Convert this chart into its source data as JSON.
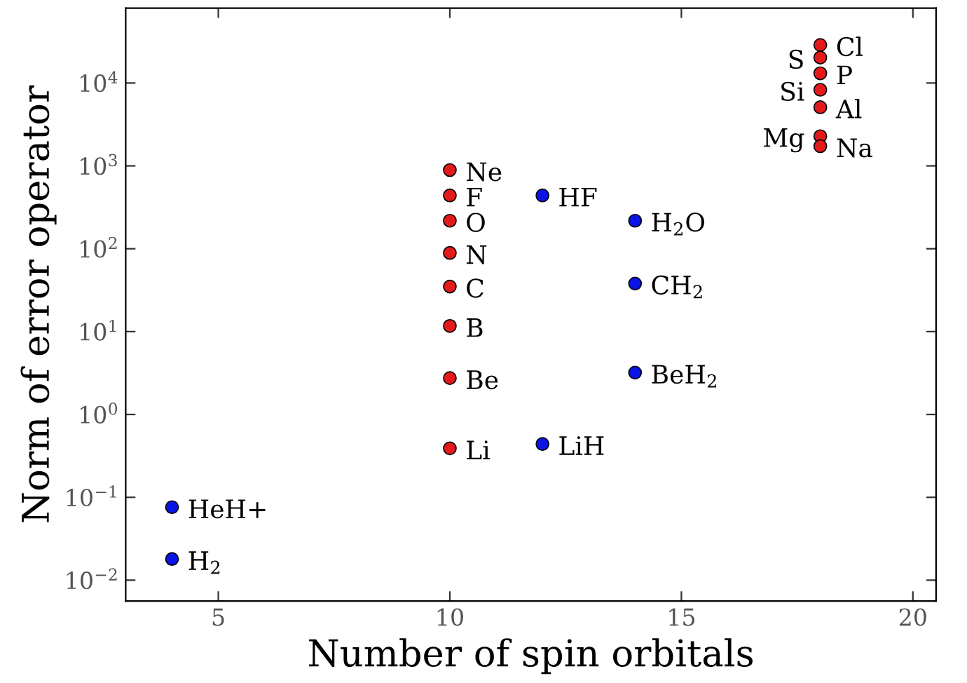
{
  "chart_data": {
    "type": "scatter",
    "xlabel": "Number of spin orbitals",
    "ylabel": "Norm of error operator",
    "log": "y",
    "grid": false,
    "legend": false,
    "marker": "circle",
    "xlim": [
      3,
      20.5
    ],
    "xticks": [
      5,
      10,
      15,
      20
    ],
    "ylim": [
      0.0056,
      80000
    ],
    "yticks": [
      {
        "value": 0.01,
        "label": "10$^{−2}$"
      },
      {
        "value": 0.1,
        "label": "10$^{−1}$"
      },
      {
        "value": 1,
        "label": "10$^{0}$"
      },
      {
        "value": 10,
        "label": "10$^{1}$"
      },
      {
        "value": 100,
        "label": "10$^{2}$"
      },
      {
        "value": 1000,
        "label": "10$^{3}$"
      },
      {
        "value": 10000,
        "label": "10$^{4}$"
      }
    ],
    "series": [
      {
        "color": "#e31a1c",
        "x": [
          10,
          10,
          10,
          10,
          10,
          10,
          10,
          10,
          18,
          18,
          18,
          18,
          18,
          18,
          18
        ],
        "values": [
          890,
          440,
          218,
          89,
          35,
          11.7,
          2.75,
          0.39,
          28800,
          20300,
          13100,
          8300,
          5100,
          2280,
          1730
        ]
      },
      {
        "color": "#0a14e6",
        "x": [
          12,
          14,
          14,
          14,
          12,
          4,
          4
        ],
        "values": [
          440,
          218,
          38,
          3.2,
          0.44,
          0.076,
          0.018
        ]
      }
    ],
    "annotations": [
      {
        "text": "Ne",
        "x": 10,
        "y": 890
      },
      {
        "text": "F",
        "x": 10,
        "y": 440
      },
      {
        "text": "O",
        "x": 10,
        "y": 218
      },
      {
        "text": "N",
        "x": 10,
        "y": 89
      },
      {
        "text": "C",
        "x": 10,
        "y": 35
      },
      {
        "text": "B",
        "x": 10,
        "y": 11.7
      },
      {
        "text": "Be",
        "x": 10,
        "y": 2.75
      },
      {
        "text": "Li",
        "x": 10,
        "y": 0.39
      },
      {
        "text": "Cl",
        "x": 18,
        "y": 28800
      },
      {
        "text": "S",
        "x": 18,
        "y": 20300
      },
      {
        "text": "P",
        "x": 18,
        "y": 13100
      },
      {
        "text": "Si",
        "x": 18,
        "y": 8300
      },
      {
        "text": "Al",
        "x": 18,
        "y": 5100
      },
      {
        "text": "Mg",
        "x": 18,
        "y": 2280
      },
      {
        "text": "Na",
        "x": 18,
        "y": 1730
      },
      {
        "text": "HF",
        "x": 12,
        "y": 440
      },
      {
        "text": "H$_{2}$O",
        "x": 14,
        "y": 218
      },
      {
        "text": "CH$_{2}$",
        "x": 14,
        "y": 38
      },
      {
        "text": "BeH$_{2}$",
        "x": 14,
        "y": 3.2
      },
      {
        "text": "LiH",
        "x": 12,
        "y": 0.44
      },
      {
        "text": "HeH+",
        "x": 4,
        "y": 0.076
      },
      {
        "text": "H$_{2}$",
        "x": 4,
        "y": 0.018
      }
    ]
  }
}
